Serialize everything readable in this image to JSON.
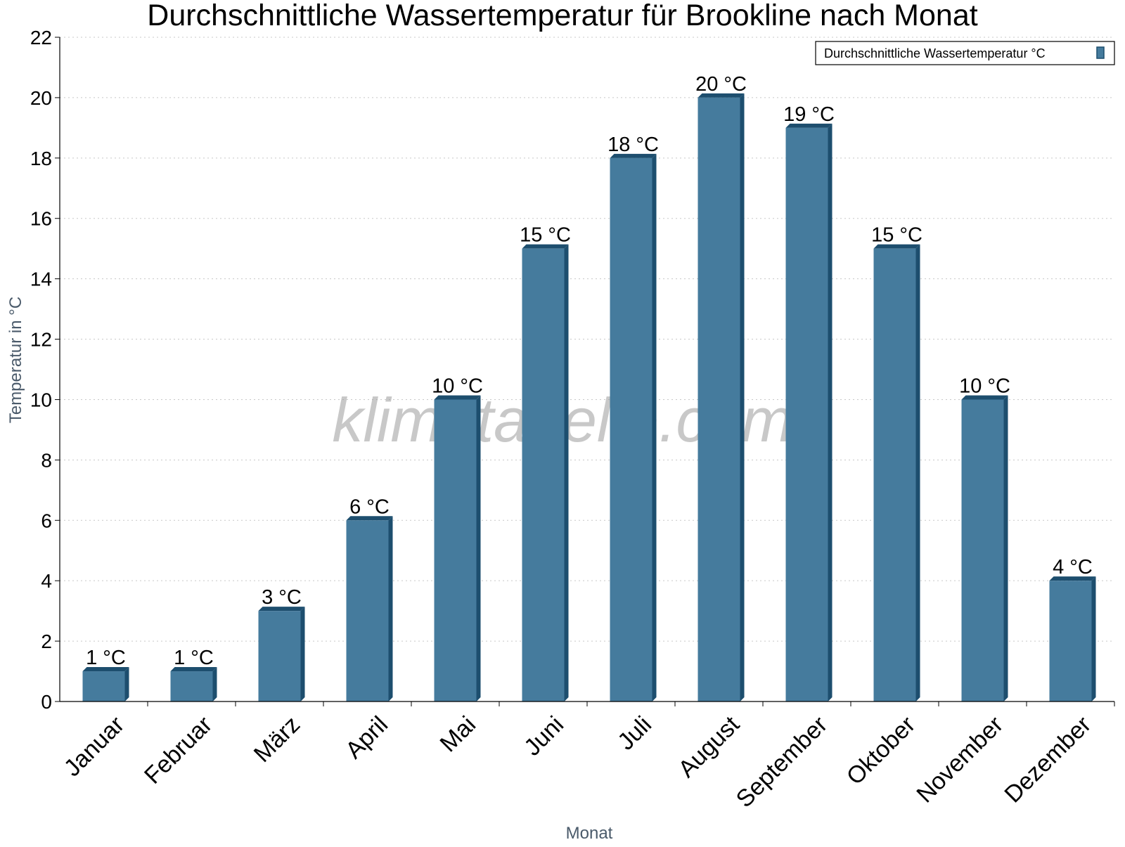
{
  "chart_data": {
    "type": "bar",
    "title": "Durchschnittliche Wassertemperatur für Brookline nach Monat",
    "xlabel": "Monat",
    "ylabel": "Temperatur in °C",
    "categories": [
      "Januar",
      "Februar",
      "März",
      "April",
      "Mai",
      "Juni",
      "Juli",
      "August",
      "September",
      "Oktober",
      "November",
      "Dezember"
    ],
    "series": [
      {
        "name": "Durchschnittliche Wassertemperatur °C",
        "values": [
          1,
          1,
          3,
          6,
          10,
          15,
          18,
          20,
          19,
          15,
          10,
          4
        ],
        "labels": [
          "1 °C",
          "1 °C",
          "3 °C",
          "6 °C",
          "10 °C",
          "15 °C",
          "18 °C",
          "20 °C",
          "19 °C",
          "15 °C",
          "10 °C",
          "4 °C"
        ]
      }
    ],
    "ylim": [
      0,
      22
    ],
    "yticks": [
      0,
      2,
      4,
      6,
      8,
      10,
      12,
      14,
      16,
      18,
      20,
      22
    ],
    "grid": true,
    "legend_position": "top-right",
    "colors": {
      "bar": "#457b9d",
      "bar_side": "#1d4e6e",
      "grid": "#c8c8c8"
    }
  },
  "watermark": "klimatabelle.com"
}
